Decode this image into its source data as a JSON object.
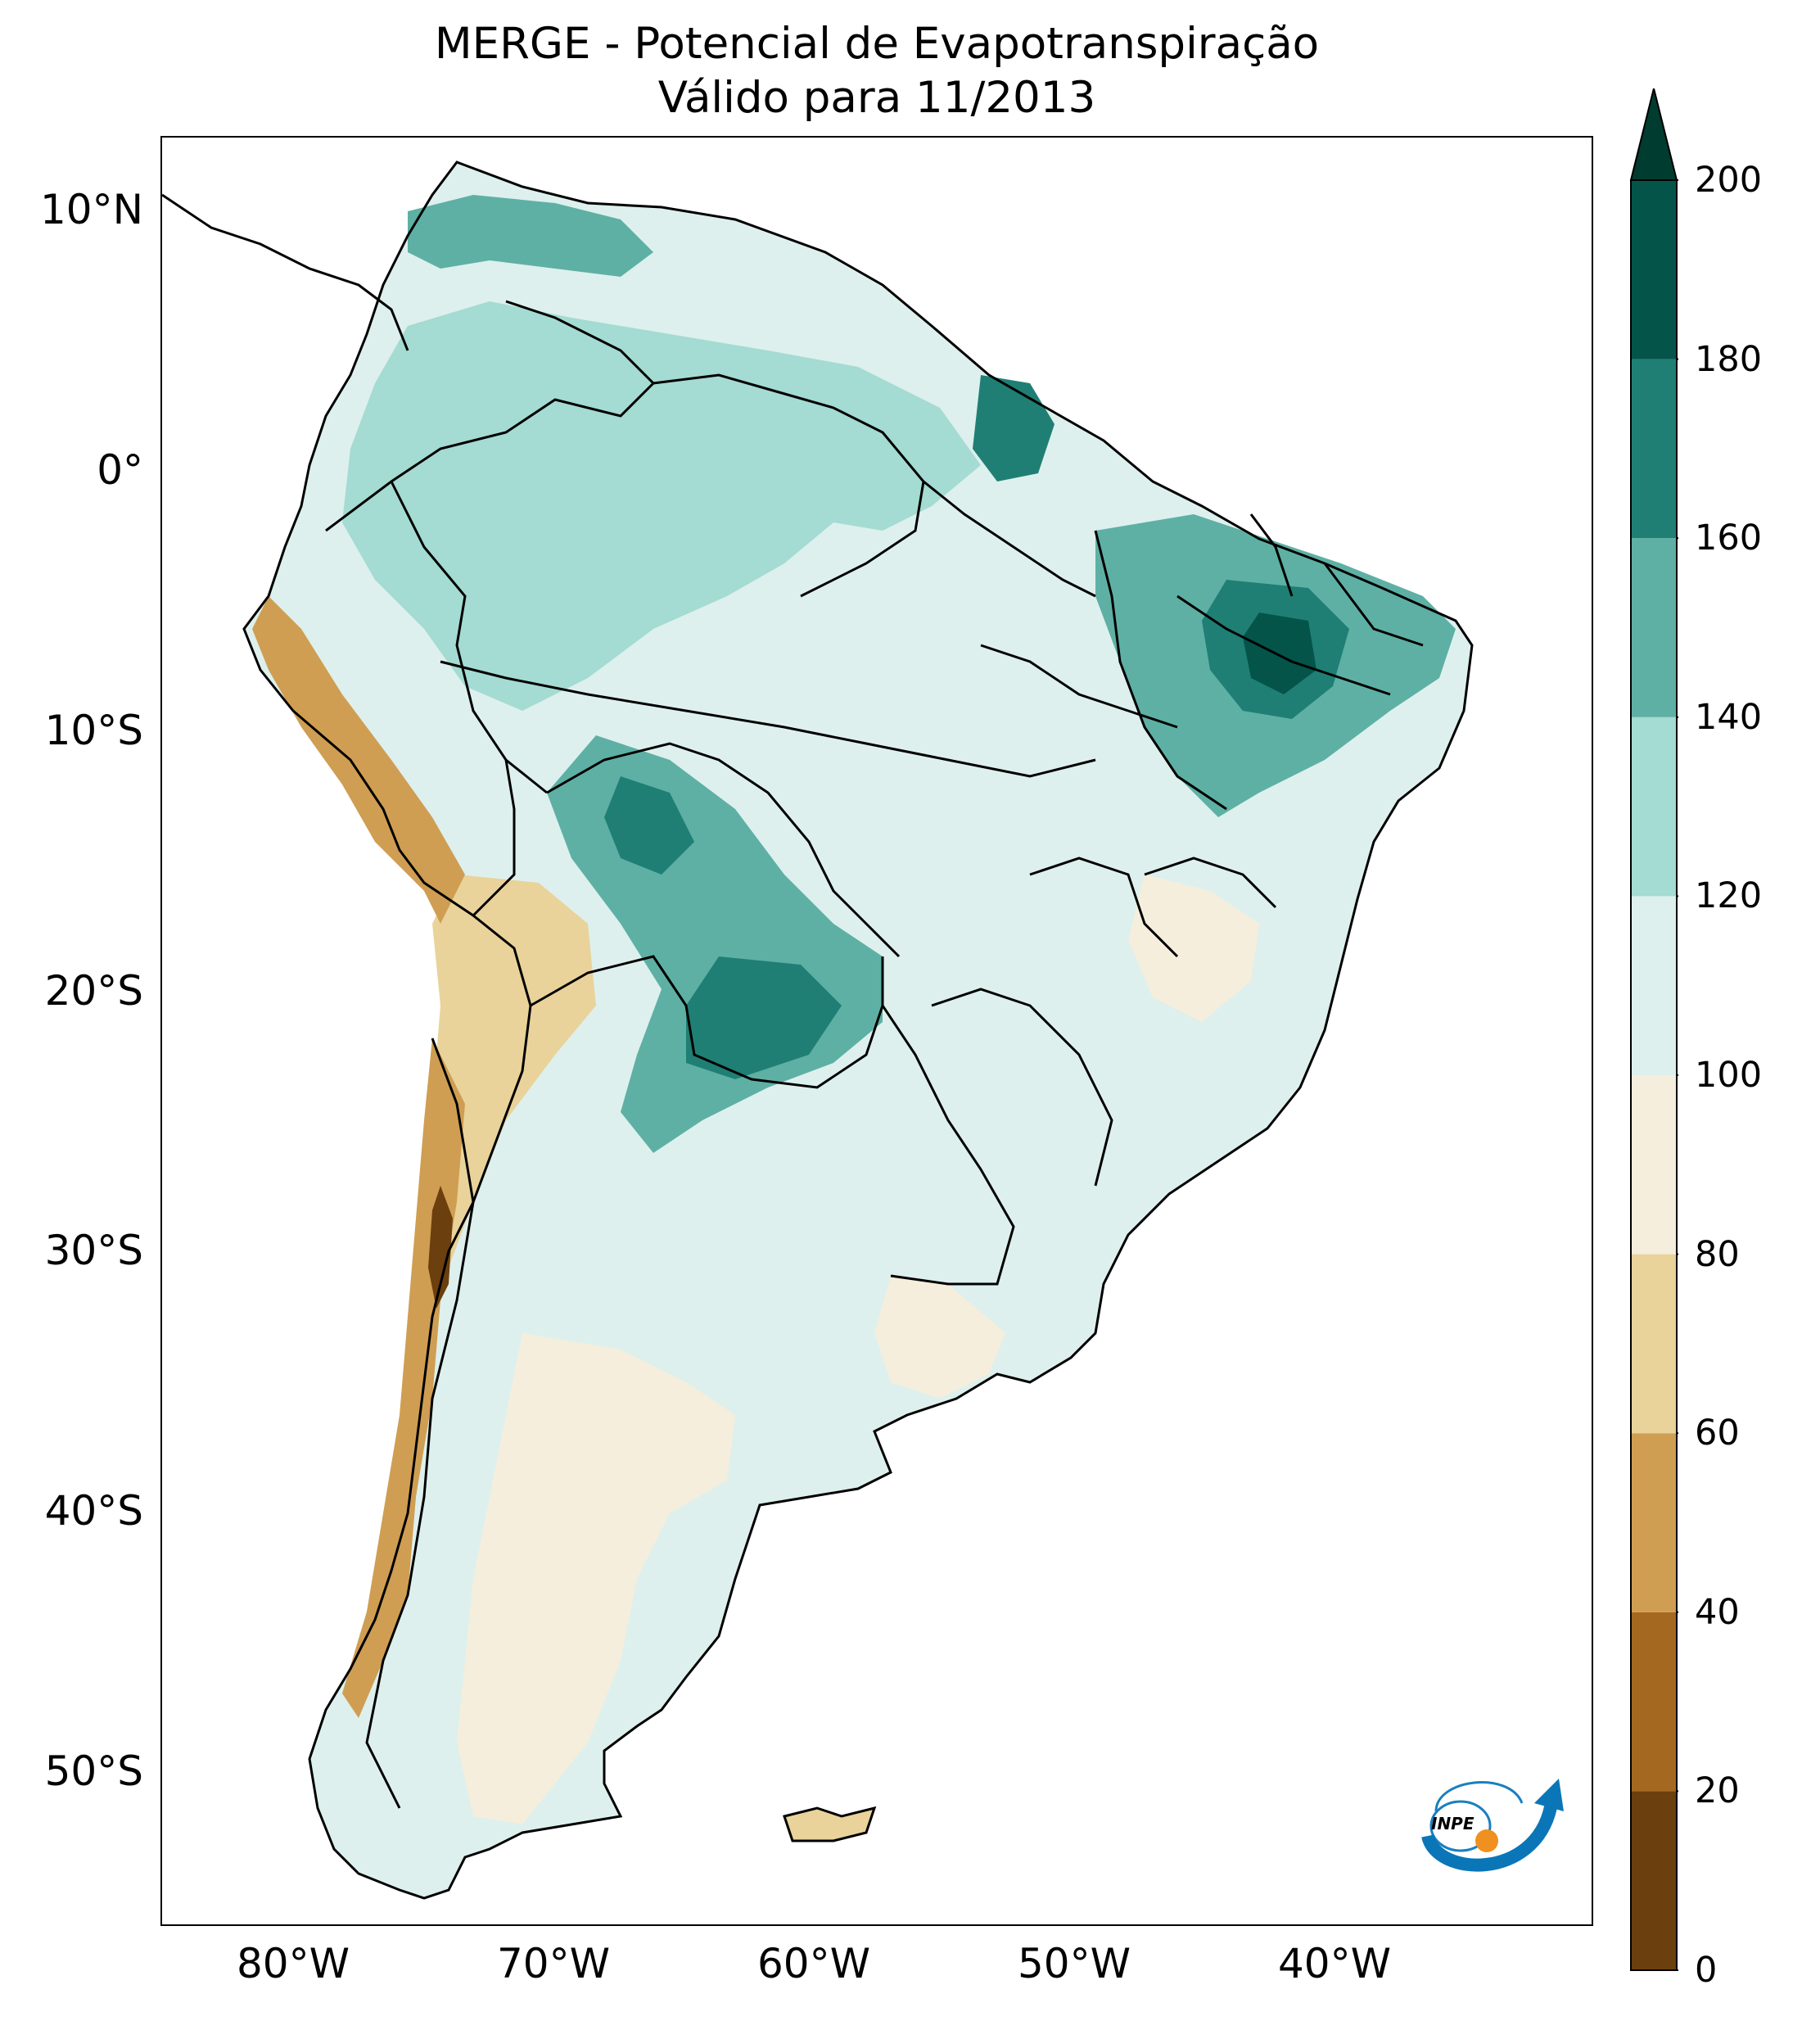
{
  "title": {
    "line1": "MERGE - Potencial de Evapotranspiração",
    "line2": "Válido para 11/2013"
  },
  "axes": {
    "lat_labels": [
      "10°N",
      "0°",
      "10°S",
      "20°S",
      "30°S",
      "40°S",
      "50°S"
    ],
    "lon_labels": [
      "80°W",
      "70°W",
      "60°W",
      "50°W",
      "40°W"
    ]
  },
  "map": {
    "region": "South America",
    "variable": "Potencial de Evapotranspiração",
    "lon_range": [
      -85,
      -30
    ],
    "lat_range": [
      -56,
      13
    ]
  },
  "colorbar": {
    "ticks": [
      "0",
      "20",
      "40",
      "60",
      "80",
      "100",
      "120",
      "140",
      "160",
      "180",
      "200"
    ],
    "bounds": [
      0,
      20,
      40,
      60,
      80,
      100,
      120,
      140,
      160,
      180,
      200
    ],
    "colors": [
      "#6b3f0e",
      "#a56820",
      "#cf9e52",
      "#e9d39a",
      "#f5eedd",
      "#ddf0ed",
      "#a4dbd2",
      "#5eb0a4",
      "#1f7f75",
      "#04544a"
    ],
    "extend_color": "#003c30"
  },
  "logo": {
    "text": "INPE"
  }
}
